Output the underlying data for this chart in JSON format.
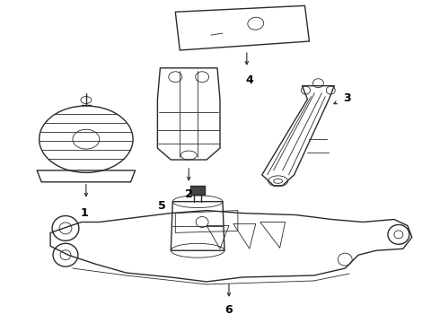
{
  "bg_color": "#ffffff",
  "line_color": "#2a2a2a",
  "label_color": "#000000",
  "fig_width": 4.9,
  "fig_height": 3.6,
  "dpi": 100
}
